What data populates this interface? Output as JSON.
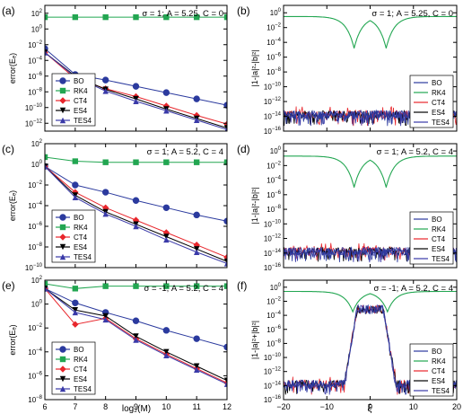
{
  "figure": {
    "left_xlabel": "log₂(M)",
    "right_xlabel": "ξ",
    "left_ylabel": "error(Eₑ)",
    "right_ylabel": "|1-|a|²-|b|²|",
    "right_ylabel_f": "|1-|a|²+|b|²|"
  },
  "colors": {
    "BO": "#2b3a9e",
    "RK4": "#22a651",
    "CT4": "#e8262c",
    "ES4": "#000000",
    "TES4": "#3a3aa8"
  },
  "chart_data": [
    {
      "panel": "a",
      "type": "line",
      "xlim": [
        6,
        12
      ],
      "ylim_exp": [
        -13,
        3
      ],
      "label": "σ = 1;  A = 5.25, C = 0",
      "x": [
        6,
        7,
        8,
        9,
        10,
        11,
        12
      ],
      "series": [
        {
          "name": "BO",
          "log10": [
            -2.5,
            -5.8,
            -6.5,
            -7.3,
            -8.1,
            -8.9,
            -9.7
          ]
        },
        {
          "name": "RK4",
          "log10": [
            1.5,
            1.5,
            1.5,
            1.5,
            1.5,
            1.5,
            1.5
          ]
        },
        {
          "name": "CT4",
          "log10": [
            -3.0,
            -6.3,
            -7.6,
            -8.6,
            -9.8,
            -11.0,
            -12.1
          ]
        },
        {
          "name": "ES4",
          "log10": [
            -3.0,
            -6.0,
            -7.7,
            -8.9,
            -10.2,
            -11.4,
            -12.6
          ]
        },
        {
          "name": "TES4",
          "log10": [
            -3.0,
            -6.1,
            -7.9,
            -9.2,
            -10.4,
            -11.6,
            -12.8
          ]
        }
      ],
      "legend": [
        "BO",
        "RK4",
        "CT4",
        "ES4",
        "TES4"
      ]
    },
    {
      "panel": "c",
      "type": "line",
      "xlim": [
        6,
        12
      ],
      "ylim_exp": [
        -10,
        2
      ],
      "label": "σ = 1;  A = 5.2, C = 4",
      "x": [
        6,
        7,
        8,
        9,
        10,
        11,
        12
      ],
      "series": [
        {
          "name": "BO",
          "log10": [
            -0.2,
            -2.0,
            -2.7,
            -3.5,
            -4.2,
            -4.9,
            -5.5
          ]
        },
        {
          "name": "RK4",
          "log10": [
            0.7,
            0.3,
            0.2,
            0.2,
            0.2,
            0.2,
            0.2
          ]
        },
        {
          "name": "CT4",
          "log10": [
            -0.2,
            -2.7,
            -4.2,
            -5.4,
            -6.6,
            -7.8,
            -9.0
          ]
        },
        {
          "name": "ES4",
          "log10": [
            -0.2,
            -3.0,
            -4.6,
            -5.8,
            -7.0,
            -8.2,
            -9.4
          ]
        },
        {
          "name": "TES4",
          "log10": [
            -0.2,
            -3.2,
            -4.8,
            -6.0,
            -7.3,
            -8.5,
            -9.6
          ]
        }
      ],
      "legend": [
        "BO",
        "RK4",
        "CT4",
        "ES4",
        "TES4"
      ]
    },
    {
      "panel": "e",
      "type": "line",
      "xlim": [
        6,
        12
      ],
      "ylim_exp": [
        -8,
        2
      ],
      "label": "σ = -1;  A = 5.2, C = 4",
      "x": [
        6,
        7,
        8,
        9,
        10,
        11,
        12
      ],
      "series": [
        {
          "name": "BO",
          "log10": [
            1.3,
            0.1,
            -0.7,
            -1.4,
            -2.2,
            -2.9,
            -3.6
          ]
        },
        {
          "name": "RK4",
          "log10": [
            1.7,
            1.3,
            1.5,
            1.5,
            1.5,
            1.5,
            1.5
          ]
        },
        {
          "name": "CT4",
          "log10": [
            1.3,
            -1.7,
            -1.2,
            -2.9,
            -4.2,
            -5.4,
            -6.6
          ]
        },
        {
          "name": "ES4",
          "log10": [
            1.3,
            -0.5,
            -1.0,
            -2.7,
            -4.0,
            -5.2,
            -6.4
          ]
        },
        {
          "name": "TES4",
          "log10": [
            1.3,
            -0.7,
            -1.3,
            -3.0,
            -4.3,
            -5.5,
            -6.7
          ]
        }
      ],
      "legend": [
        "BO",
        "RK4",
        "CT4",
        "ES4",
        "TES4"
      ]
    },
    {
      "panel": "b",
      "type": "line",
      "xlim": [
        -20,
        20
      ],
      "ylim_exp": [
        -16,
        1
      ],
      "label": "σ = 1;  A = 5.25, C = 0",
      "curve": "rk4_dips",
      "rk4_peak_exp": -0.5,
      "rk4_dip_exp": -4.8,
      "dips_at": [
        -3.7,
        3.7
      ],
      "noise_floor_exp": -14.3,
      "noise_top_exp": -13.2,
      "legend": [
        "BO",
        "RK4",
        "CT4",
        "ES4",
        "TES4"
      ]
    },
    {
      "panel": "d",
      "type": "line",
      "xlim": [
        -20,
        20
      ],
      "ylim_exp": [
        -16,
        1
      ],
      "label": "σ = 1;  A = 5.2, C = 4",
      "curve": "rk4_dips",
      "rk4_peak_exp": -0.7,
      "rk4_dip_exp": -5.0,
      "dips_at": [
        -3.7,
        3.7
      ],
      "noise_floor_exp": -14.3,
      "noise_top_exp": -13.2,
      "legend": [
        "BO",
        "RK4",
        "CT4",
        "ES4",
        "TES4"
      ]
    },
    {
      "panel": "f",
      "type": "line",
      "xlim": [
        -20,
        20
      ],
      "ylim_exp": [
        -16,
        1
      ],
      "label": "σ = -1;  A = 5.2, C = 4",
      "curve": "rk4_dips_hump",
      "rk4_peak_exp": -0.6,
      "rk4_dip_exp": -3.5,
      "dips_at": [
        -4,
        4
      ],
      "hump_exp": -2.5,
      "hump_halfwidth": 4.5,
      "noise_floor_exp": -14.3,
      "noise_top_exp": -13.2,
      "legend": [
        "BO",
        "RK4",
        "CT4",
        "ES4",
        "TES4"
      ]
    }
  ]
}
